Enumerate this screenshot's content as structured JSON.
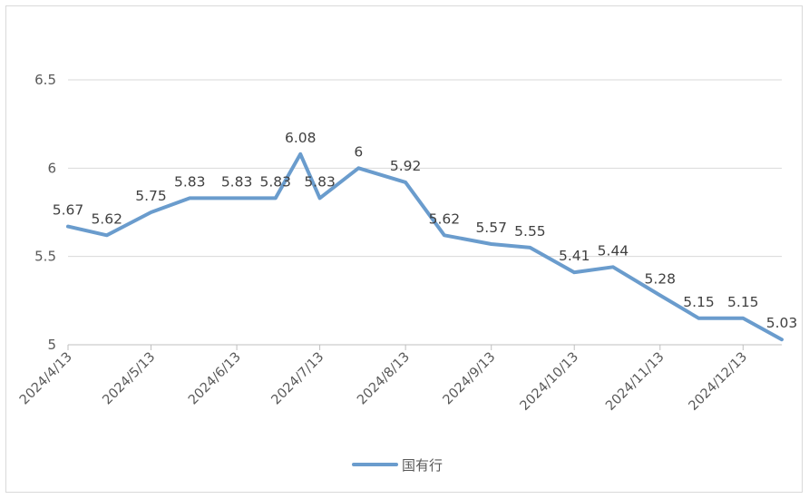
{
  "chart_data": {
    "type": "line",
    "title": "",
    "xlabel": "",
    "ylabel": "",
    "ylim": [
      5,
      6.5
    ],
    "y_ticks": [
      "5",
      "5.5",
      "6",
      "6.5"
    ],
    "x_tick_labels": [
      "2024/4/13",
      "2024/5/13",
      "2024/6/13",
      "2024/7/13",
      "2024/8/13",
      "2024/9/13",
      "2024/10/13",
      "2024/11/13",
      "2024/12/13"
    ],
    "grid": true,
    "legend_position": "bottom",
    "series_color": "#6a9ccd",
    "series": [
      {
        "name": "国有行",
        "x": [
          "2024/4/13",
          "2024/4/27",
          "2024/5/13",
          "2024/5/27",
          "2024/6/13",
          "2024/6/27",
          "2024/7/6",
          "2024/7/13",
          "2024/7/27",
          "2024/8/13",
          "2024/8/27",
          "2024/9/13",
          "2024/9/27",
          "2024/10/13",
          "2024/10/27",
          "2024/11/13",
          "2024/11/27",
          "2024/12/13",
          "2024/12/27"
        ],
        "values": [
          5.67,
          5.62,
          5.75,
          5.83,
          5.83,
          5.83,
          6.08,
          5.83,
          6,
          5.92,
          5.62,
          5.57,
          5.55,
          5.41,
          5.44,
          5.28,
          5.15,
          5.15,
          5.03
        ],
        "labels": [
          "5.67",
          "5.62",
          "5.75",
          "5.83",
          "5.83",
          "5.83",
          "6.08",
          "5.83",
          "6",
          "5.92",
          "5.62",
          "5.57",
          "5.55",
          "5.41",
          "5.44",
          "5.28",
          "5.15",
          "5.15",
          "5.03"
        ]
      }
    ]
  }
}
